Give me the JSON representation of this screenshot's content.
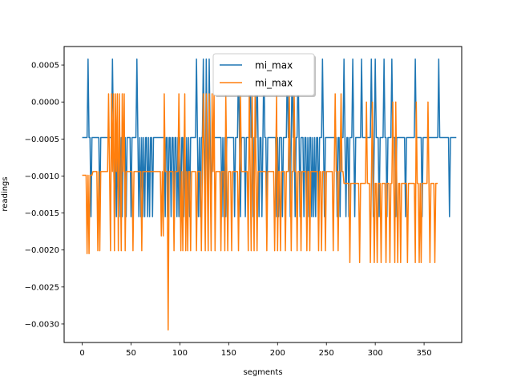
{
  "chart_data": {
    "type": "line",
    "title": "",
    "xlabel": "segments",
    "ylabel": "readings",
    "xlim": [
      -18.5,
      388.5
    ],
    "ylim": [
      -0.00325,
      0.00075
    ],
    "xticks": [
      0,
      50,
      100,
      150,
      200,
      250,
      300,
      350
    ],
    "xtick_labels": [
      "0",
      "50",
      "100",
      "150",
      "200",
      "250",
      "300",
      "350"
    ],
    "yticks": [
      -0.003,
      -0.0025,
      -0.002,
      -0.0015,
      -0.001,
      -0.0005,
      0.0,
      0.0005
    ],
    "ytick_labels": [
      "−0.0030",
      "−0.0025",
      "−0.0020",
      "−0.0015",
      "−0.0010",
      "−0.0005",
      "0.0000",
      "0.0005"
    ],
    "grid": false,
    "legend_position": "top-center",
    "series": [
      {
        "name": "mi_max",
        "color": "#1f77b4",
        "step": 1,
        "values": [
          -0.00048,
          -0.00048,
          -0.00048,
          -0.00048,
          -0.00048,
          -0.00048,
          0.00058,
          -0.00048,
          -0.00048,
          -0.00155,
          -0.00048,
          -0.00048,
          -0.00048,
          -0.00048,
          -0.00048,
          -0.00048,
          -0.00048,
          -0.00048,
          -0.00155,
          -0.00048,
          -0.00048,
          -0.00048,
          -0.00048,
          -0.00048,
          -0.00048,
          -0.00048,
          -0.00048,
          -0.00048,
          -0.00048,
          -0.00048,
          -0.00048,
          0.00058,
          -0.00048,
          -0.00155,
          -0.00048,
          -0.00155,
          -0.00048,
          -0.00155,
          -0.00048,
          -0.00155,
          -0.00048,
          -0.00155,
          -0.00048,
          -0.00048,
          -0.00048,
          -0.00155,
          -0.00048,
          -0.00048,
          -0.00048,
          -0.00048,
          -0.00155,
          -0.00048,
          -0.00048,
          -0.00048,
          -0.00048,
          -0.00048,
          0.00058,
          -0.00048,
          -0.00155,
          -0.00048,
          -0.00155,
          -0.00048,
          -0.00155,
          -0.00048,
          -0.00155,
          -0.00048,
          -0.00048,
          -0.00155,
          -0.00048,
          -0.00155,
          -0.00048,
          -0.00048,
          -0.00155,
          -0.00048,
          -0.00048,
          -0.00048,
          -0.00048,
          -0.00048,
          -0.00048,
          -0.00048,
          -0.00048,
          -0.00048,
          -0.00048,
          -0.00048,
          -0.00048,
          -0.00155,
          -0.00048,
          -0.00048,
          -0.00155,
          -0.00048,
          -0.00048,
          -0.00155,
          -0.00048,
          -0.00048,
          -0.00155,
          -0.00048,
          -0.00048,
          -0.00155,
          -0.00048,
          -0.00155,
          -0.00048,
          -0.00155,
          -0.00048,
          -0.00048,
          -0.00155,
          -0.00048,
          -0.00155,
          -0.00048,
          -0.00155,
          -0.00048,
          -0.00155,
          -0.00048,
          -0.00048,
          -0.00048,
          -0.00048,
          -0.00048,
          -0.00048,
          0.00058,
          -0.00048,
          -0.00155,
          -0.00048,
          -0.00155,
          -0.00048,
          -0.00048,
          0.00058,
          -0.00048,
          -0.00155,
          0.00058,
          -0.00048,
          -0.00155,
          0.00058,
          -0.00048,
          -0.00155,
          -0.00048,
          -0.00048,
          -0.00048,
          -0.00048,
          -0.00048,
          -0.00048,
          -0.00048,
          -0.00048,
          -0.00048,
          -0.00048,
          -0.00155,
          -0.00048,
          -0.00155,
          -0.00048,
          -0.00155,
          -0.00048,
          -0.00048,
          -0.00048,
          -0.00048,
          -0.00048,
          -0.00048,
          -0.00048,
          -0.00048,
          -0.00155,
          -0.00048,
          -0.00048,
          -0.00048,
          0.00058,
          -0.00048,
          -0.00155,
          -0.00048,
          -0.00048,
          -0.00048,
          -0.00048,
          -0.00155,
          -0.00048,
          -0.00048,
          -0.00048,
          -0.00048,
          0.00058,
          -0.00048,
          -0.00048,
          -0.00155,
          -0.00048,
          -0.00048,
          -0.00048,
          0.00058,
          -0.00048,
          -0.00155,
          -0.00048,
          -0.00048,
          -0.00155,
          -0.00048,
          0.00058,
          -0.00048,
          -0.00048,
          -0.00155,
          -0.00048,
          -0.00048,
          -0.00048,
          -0.00048,
          -0.00048,
          -0.00048,
          -0.00048,
          -0.00048,
          -0.00048,
          -0.00155,
          -0.00048,
          -0.00155,
          -0.00048,
          -0.00048,
          -0.00048,
          -0.00155,
          -0.00048,
          -0.00048,
          -0.00048,
          -0.00048,
          0.00058,
          -0.00048,
          -0.00048,
          -0.00155,
          -0.00048,
          0.00058,
          -0.00048,
          -0.00048,
          -0.00155,
          -0.00048,
          -0.00048,
          0.00058,
          -0.00048,
          -0.00155,
          -0.00048,
          -0.00048,
          -0.00048,
          -0.00155,
          -0.00048,
          -0.00048,
          -0.00155,
          -0.00048,
          -0.00155,
          -0.00048,
          -0.00048,
          -0.00155,
          -0.00048,
          -0.00155,
          -0.00048,
          -0.00155,
          -0.00048,
          -0.00048,
          -0.00155,
          -0.00048,
          -0.00048,
          -0.00048,
          0.00058,
          -0.00048,
          -0.00155,
          -0.00048,
          -0.00048,
          -0.00048,
          -0.00048,
          -0.00048,
          -0.00048,
          -0.00048,
          -0.00048,
          -0.00048,
          -0.00048,
          -0.00048,
          -0.00048,
          -0.00155,
          -0.00048,
          -0.00048,
          -0.00155,
          -0.00048,
          -0.00048,
          -0.00048,
          0.00058,
          -0.00048,
          -0.00155,
          -0.00048,
          -0.00048,
          -0.00155,
          -0.00048,
          -0.00048,
          -0.00048,
          0.00058,
          -0.00048,
          -0.00155,
          -0.00048,
          -0.00048,
          -0.00048,
          -0.00048,
          -0.00048,
          -0.00048,
          0.00058,
          -0.00048,
          -0.00048,
          -0.00048,
          -0.00048,
          -0.00048,
          -0.00048,
          -0.00048,
          -0.00048,
          -0.00048,
          0.00058,
          -0.00048,
          -0.00155,
          -0.00048,
          0.00058,
          -0.00048,
          -0.00048,
          -0.00048,
          -0.00155,
          -0.00048,
          -0.00048,
          -0.00048,
          -0.00048,
          0.00058,
          -0.00048,
          -0.00048,
          -0.00155,
          -0.00048,
          -0.00048,
          -0.00048,
          -0.00048,
          0.00058,
          -0.00048,
          -0.00048,
          -0.00048,
          -0.00155,
          -0.00048,
          -0.00048,
          -0.00048,
          -0.00048,
          -0.00048,
          -0.00048,
          -0.00048,
          -0.00048,
          -0.00048,
          -0.00155,
          -0.00048,
          -0.00048,
          -0.00048,
          -0.00048,
          -0.00048,
          -0.00048,
          -0.00048,
          -0.00048,
          -0.00048,
          0.00058,
          -0.00048,
          -0.00048,
          -0.00048,
          -0.00048,
          -0.00048,
          -0.00048,
          -0.00155,
          -0.00048,
          -0.00048,
          -0.00048,
          -0.00048,
          -0.00048,
          -0.00048,
          -0.00048,
          -0.00048,
          -0.00048,
          -0.00048,
          -0.00048,
          -0.00048,
          -0.00048,
          -0.00048,
          -0.00048,
          -0.00048,
          0.00058,
          -0.00048,
          -0.00048,
          -0.00048,
          -0.00048,
          -0.00048,
          -0.00048,
          -0.00048,
          -0.00048,
          -0.00048,
          -0.00048,
          -0.00155,
          -0.00048,
          -0.00048,
          -0.00048,
          -0.00048,
          -0.00048,
          -0.00048,
          -0.00048
        ]
      },
      {
        "name": "mi_max",
        "color": "#ff7f0e",
        "step": 1,
        "values": [
          -0.00099,
          -0.00099,
          -0.00099,
          -0.00099,
          -0.00099,
          -0.00205,
          -0.00099,
          -0.00205,
          -0.00099,
          -0.00099,
          -0.00099,
          -0.00094,
          -0.00094,
          -0.00094,
          -0.00094,
          -0.00094,
          -0.00201,
          -0.00094,
          -0.00201,
          -0.00094,
          -0.00094,
          -0.00094,
          -0.00094,
          -0.00094,
          -0.00094,
          -0.00094,
          -0.00094,
          0.00011,
          -0.00094,
          -0.00201,
          0.00011,
          -0.00094,
          0.00011,
          -0.00201,
          0.00011,
          -0.00094,
          0.00011,
          -0.00201,
          0.00011,
          -0.00094,
          -0.00201,
          0.00011,
          -0.00094,
          0.00011,
          -0.00201,
          -0.00094,
          -0.00094,
          -0.00094,
          -0.00094,
          -0.00094,
          -0.00094,
          -0.00094,
          -0.00201,
          -0.00094,
          -0.00094,
          -0.00094,
          -0.00094,
          -0.00094,
          -0.00094,
          -0.00094,
          -0.00094,
          -0.00201,
          -0.00094,
          -0.00094,
          -0.00094,
          -0.00094,
          -0.00094,
          -0.00094,
          -0.00094,
          -0.00094,
          -0.00094,
          -0.00094,
          -0.00094,
          -0.00094,
          -0.00094,
          -0.00094,
          -0.00094,
          -0.00094,
          -0.00094,
          -0.00094,
          -0.00094,
          -0.00181,
          -0.00094,
          -0.00181,
          0.00011,
          -0.00094,
          -0.00094,
          -0.00094,
          -0.00308,
          -0.00094,
          -0.00094,
          -0.00094,
          -0.00094,
          -0.00094,
          -0.00201,
          -0.00094,
          -0.00094,
          -0.00094,
          -0.00094,
          0.00011,
          -0.00094,
          -0.00201,
          -0.00094,
          -0.00201,
          -0.00094,
          0.00011,
          -0.00201,
          -0.00094,
          -0.00201,
          -0.00094,
          -0.00094,
          -0.00201,
          -0.00094,
          -0.00094,
          -0.00094,
          -0.00094,
          -0.00094,
          -0.00201,
          -0.00094,
          -0.00094,
          -0.00094,
          -0.00094,
          -0.00201,
          -0.00094,
          0.00011,
          -0.00094,
          -0.00201,
          0.00011,
          -0.00094,
          -0.00201,
          0.00011,
          -0.00094,
          -0.00201,
          0.00011,
          -0.00094,
          0.00011,
          -0.00201,
          -0.00094,
          -0.00094,
          -0.00094,
          -0.00094,
          -0.00094,
          -0.00201,
          -0.00094,
          -0.00094,
          -0.00094,
          -0.00201,
          0.00011,
          -0.00094,
          -0.00201,
          -0.00094,
          -0.00094,
          -0.00094,
          -0.00201,
          -0.00094,
          -0.00094,
          -0.00094,
          -0.00094,
          -0.00094,
          -0.00094,
          -0.00201,
          -0.00094,
          0.00011,
          -0.00094,
          -0.00094,
          -0.00094,
          -0.00094,
          -0.00094,
          -0.00094,
          -0.00094,
          -0.00201,
          0.00011,
          -0.00094,
          -0.00201,
          0.00011,
          -0.00094,
          -0.00201,
          0.00011,
          -0.00094,
          -0.00201,
          -0.00094,
          -0.00094,
          -0.00094,
          -0.00094,
          -0.00094,
          -0.00094,
          -0.00094,
          -0.00094,
          -0.00094,
          -0.00201,
          -0.00094,
          -0.00094,
          -0.00094,
          -0.00094,
          -0.00094,
          -0.00094,
          -0.00094,
          -0.00201,
          -0.00094,
          0.00011,
          -0.00201,
          -0.00094,
          -0.00094,
          -0.00201,
          -0.00094,
          -0.00094,
          -0.00094,
          -0.00094,
          -0.00201,
          -0.00094,
          -0.00094,
          -0.00094,
          0.00011,
          -0.00094,
          -0.00201,
          -0.00094,
          -0.00094,
          0.00011,
          -0.00094,
          -0.00094,
          -0.00201,
          -0.00094,
          -0.00094,
          -0.00094,
          -0.00201,
          -0.00094,
          -0.00094,
          -0.00094,
          -0.00094,
          -0.00094,
          -0.00201,
          -0.00094,
          -0.00094,
          -0.00201,
          -0.00094,
          -0.00094,
          -0.00094,
          -0.00094,
          -0.00094,
          -0.00094,
          -0.00094,
          -0.00094,
          -0.00201,
          -0.00094,
          -0.00094,
          -0.00201,
          -0.00094,
          -0.00094,
          -0.00094,
          -0.00201,
          -0.00094,
          -0.00094,
          -0.00094,
          -0.00094,
          -0.00094,
          -0.00094,
          -0.00094,
          -0.00201,
          -0.00094,
          0.00011,
          -0.00094,
          -0.00094,
          -0.00201,
          -0.00094,
          -0.00094,
          0.00011,
          -0.00094,
          -0.00094,
          -0.0011,
          -0.0011,
          -0.0011,
          -0.0011,
          -0.0011,
          -0.0011,
          -0.00217,
          -0.0011,
          -0.0011,
          -0.0011,
          -0.0011,
          -0.0011,
          -0.0011,
          -0.0011,
          -0.0011,
          -0.0011,
          -0.00217,
          -0.0011,
          -0.0011,
          -0.0011,
          -0.0011,
          -0.0011,
          -0.0011,
          0.0,
          -0.0011,
          -0.0011,
          -0.0011,
          -0.00217,
          -0.0011,
          0.0,
          -0.0011,
          -0.00217,
          -0.0011,
          -0.0011,
          -0.00217,
          -0.0011,
          -0.0011,
          -0.0011,
          -0.00217,
          -0.0011,
          -0.0011,
          -0.0011,
          -0.0011,
          -0.00217,
          -0.0011,
          -0.0011,
          -0.0011,
          -0.00217,
          -0.0011,
          -0.0011,
          0.0,
          -0.0011,
          -0.00217,
          0.0,
          -0.0011,
          -0.00217,
          -0.0011,
          -0.0011,
          -0.00217,
          -0.0011,
          -0.0011,
          -0.0011,
          -0.0011,
          -0.0011,
          -0.0011,
          -0.00217,
          -0.0011,
          -0.0011,
          -0.0011,
          -0.0011,
          -0.0011,
          -0.0011,
          -0.0011,
          -0.00217,
          0.0,
          -0.0011,
          -0.0011,
          -0.00217,
          -0.0011,
          -0.00217,
          -0.0011,
          -0.0011,
          -0.0011,
          -0.0011,
          -0.0011,
          -0.0011,
          0.0,
          -0.0011,
          -0.00217,
          -0.0011,
          -0.0011,
          -0.0011,
          -0.0011,
          -0.00217,
          -0.0011,
          -0.0011,
          -0.0011
        ]
      }
    ]
  }
}
